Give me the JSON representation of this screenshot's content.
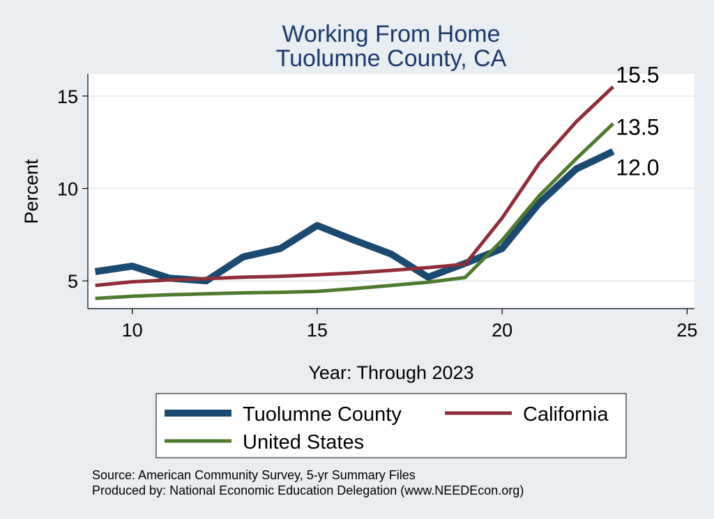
{
  "chart_data": {
    "type": "line",
    "title": [
      "Working From Home",
      "Tuolumne County, CA"
    ],
    "xlabel": "Year: Through 2023",
    "ylabel": "Percent",
    "xlim": [
      8.8,
      25.2
    ],
    "ylim": [
      3.5,
      16.2
    ],
    "xticks": [
      10,
      15,
      20,
      25
    ],
    "yticks": [
      5,
      10,
      15
    ],
    "grid": true,
    "legend_position": "bottom",
    "series": [
      {
        "name": "Tuolumne County",
        "color": "#1a4a72",
        "width": 10,
        "x": [
          9,
          10,
          11,
          12,
          13,
          14,
          15,
          16,
          17,
          18,
          19,
          20,
          21,
          22,
          23
        ],
        "y": [
          5.5,
          5.8,
          5.15,
          5.0,
          6.3,
          6.75,
          8.0,
          7.2,
          6.45,
          5.2,
          5.95,
          6.75,
          9.2,
          11.05,
          12.0
        ]
      },
      {
        "name": "California",
        "color": "#8f2d38",
        "width": 5,
        "x": [
          9,
          10,
          11,
          12,
          13,
          14,
          15,
          16,
          17,
          18,
          19,
          20,
          21,
          22,
          23
        ],
        "y": [
          4.75,
          4.95,
          5.05,
          5.12,
          5.2,
          5.25,
          5.33,
          5.43,
          5.57,
          5.72,
          5.9,
          8.4,
          11.35,
          13.6,
          15.5
        ]
      },
      {
        "name": "United States",
        "color": "#4e7a2c",
        "width": 5,
        "x": [
          9,
          10,
          11,
          12,
          13,
          14,
          15,
          16,
          17,
          18,
          19,
          20,
          21,
          22,
          23
        ],
        "y": [
          4.05,
          4.17,
          4.25,
          4.3,
          4.35,
          4.38,
          4.43,
          4.58,
          4.75,
          4.93,
          5.18,
          7.2,
          9.6,
          11.6,
          13.5
        ]
      }
    ],
    "end_labels": [
      {
        "series": 1,
        "text": "15.5"
      },
      {
        "series": 2,
        "text": "13.5"
      },
      {
        "series": 0,
        "text": "12.0"
      }
    ],
    "legend": [
      {
        "label": "Tuolumne County",
        "series": 0
      },
      {
        "label": "California",
        "series": 1
      },
      {
        "label": "United States",
        "series": 2
      }
    ]
  },
  "source_lines": [
    "Source: American Community Survey, 5-yr Summary Files",
    "Produced by: National Economic Education Delegation (www.NEEDEcon.org)"
  ]
}
